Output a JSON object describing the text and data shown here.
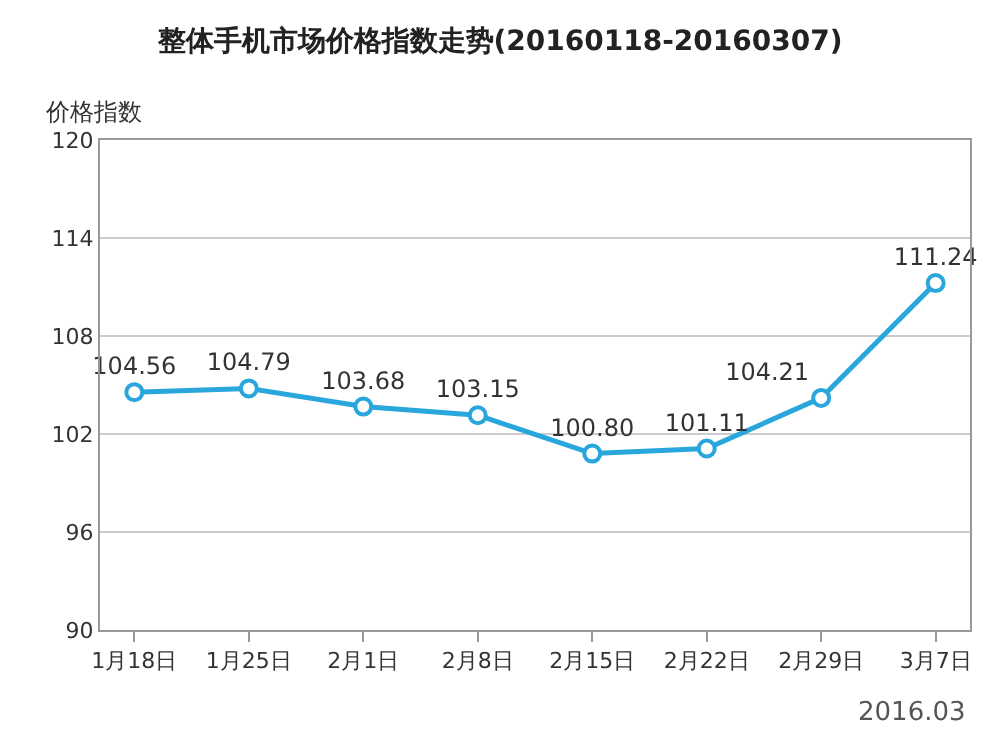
{
  "chart_data": {
    "type": "line",
    "title": "整体手机市场价格指数走势(20160118-20160307)",
    "ylabel": "价格指数",
    "categories": [
      "1月18日",
      "1月25日",
      "2月1日",
      "2月8日",
      "2月15日",
      "2月22日",
      "2月29日",
      "3月7日"
    ],
    "series": [
      {
        "color": "#29a6dc",
        "values": [
          104.56,
          104.79,
          103.68,
          103.15,
          100.8,
          101.11,
          104.21,
          111.24
        ]
      }
    ],
    "value_labels": [
      "104.56",
      "104.79",
      "103.68",
      "103.15",
      "100.80",
      "101.11",
      "104.21",
      "111.24"
    ],
    "ylim": [
      90,
      120
    ],
    "yticks": [
      90,
      96,
      102,
      108,
      114,
      120
    ],
    "grid": "y",
    "marker": "circle",
    "line_style": "solid",
    "annotations": [
      "2016.03"
    ]
  }
}
